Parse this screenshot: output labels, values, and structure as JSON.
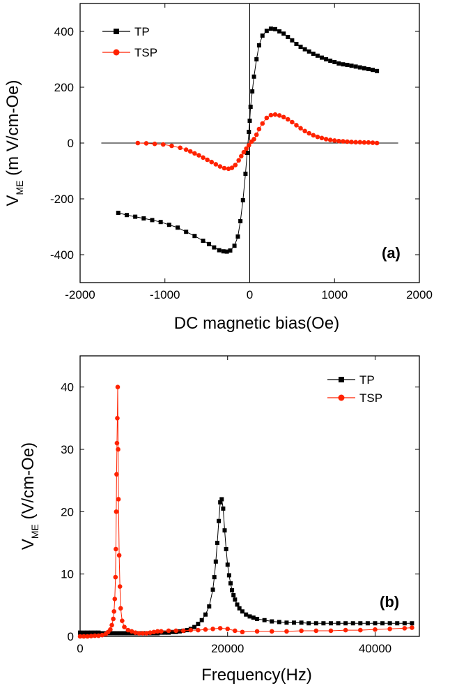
{
  "chart_data": [
    {
      "type": "scatter",
      "panel_label": "(a)",
      "xlabel": "DC magnetic bias(Oe)",
      "ylabel": {
        "base": "V",
        "sub": "ME",
        "rest": " (m V/cm-Oe)"
      },
      "xlim": [
        -2000,
        2000
      ],
      "ylim": [
        -500,
        500
      ],
      "xticks": [
        -2000,
        -1000,
        0,
        1000,
        2000
      ],
      "yticks": [
        -400,
        -200,
        0,
        200,
        400
      ],
      "xtick_labels": [
        "-2000",
        "-1000",
        "0",
        "1000",
        "2000"
      ],
      "ytick_labels": [
        "-400",
        "-200",
        "0",
        "200",
        "400"
      ],
      "reference_lines": {
        "x": 0,
        "y": 0
      },
      "legend_position": "top-left",
      "series": [
        {
          "name": "TP",
          "color": "#000000",
          "marker": "square",
          "x": [
            -1550,
            -1450,
            -1350,
            -1250,
            -1150,
            -1050,
            -950,
            -850,
            -750,
            -650,
            -550,
            -480,
            -420,
            -360,
            -310,
            -270,
            -230,
            -180,
            -140,
            -110,
            -80,
            -50,
            -30,
            -10,
            0,
            10,
            30,
            50,
            80,
            110,
            150,
            200,
            250,
            300,
            350,
            400,
            450,
            500,
            550,
            600,
            650,
            700,
            750,
            800,
            850,
            900,
            950,
            1000,
            1050,
            1100,
            1150,
            1200,
            1250,
            1300,
            1350,
            1400,
            1450,
            1500
          ],
          "y": [
            -250,
            -258,
            -264,
            -270,
            -276,
            -283,
            -293,
            -303,
            -318,
            -333,
            -350,
            -362,
            -374,
            -384,
            -388,
            -389,
            -385,
            -368,
            -335,
            -280,
            -205,
            -110,
            -35,
            40,
            80,
            130,
            185,
            238,
            300,
            350,
            385,
            402,
            410,
            408,
            400,
            392,
            380,
            368,
            355,
            345,
            336,
            328,
            320,
            313,
            306,
            300,
            295,
            290,
            285,
            282,
            280,
            277,
            274,
            271,
            268,
            265,
            262,
            258
          ]
        },
        {
          "name": "TSP",
          "color": "#ff2200",
          "marker": "circle",
          "x": [
            -1320,
            -1220,
            -1120,
            -1020,
            -920,
            -820,
            -750,
            -700,
            -650,
            -600,
            -550,
            -500,
            -450,
            -400,
            -350,
            -300,
            -250,
            -210,
            -170,
            -130,
            -100,
            -70,
            -40,
            -10,
            20,
            50,
            80,
            110,
            150,
            200,
            250,
            300,
            350,
            400,
            450,
            500,
            550,
            600,
            650,
            700,
            750,
            800,
            850,
            900,
            950,
            1000,
            1050,
            1100,
            1150,
            1200,
            1250,
            1300,
            1350,
            1400,
            1450,
            1500
          ],
          "y": [
            0,
            -1,
            -3,
            -5,
            -10,
            -17,
            -24,
            -30,
            -37,
            -44,
            -52,
            -60,
            -68,
            -76,
            -84,
            -90,
            -92,
            -89,
            -79,
            -62,
            -47,
            -33,
            -20,
            -8,
            5,
            14,
            30,
            50,
            70,
            90,
            100,
            102,
            99,
            93,
            85,
            75,
            64,
            53,
            43,
            35,
            28,
            22,
            18,
            14,
            11,
            9,
            7,
            6,
            5,
            4,
            3,
            3,
            2,
            2,
            1,
            0
          ]
        }
      ]
    },
    {
      "type": "scatter",
      "panel_label": "(b)",
      "xlabel": "Frequency(Hz)",
      "ylabel": {
        "base": "V",
        "sub": "ME",
        "rest": " (V/cm-Oe)"
      },
      "xlim": [
        0,
        46000
      ],
      "ylim": [
        0,
        45
      ],
      "xticks": [
        0,
        20000,
        40000
      ],
      "yticks": [
        0,
        10,
        20,
        30,
        40
      ],
      "xtick_labels": [
        "0",
        "20000",
        "40000"
      ],
      "ytick_labels": [
        "0",
        "10",
        "20",
        "30",
        "40"
      ],
      "legend_position": "top-right",
      "series": [
        {
          "name": "TP",
          "color": "#000000",
          "marker": "square",
          "x": [
            0,
            500,
            1000,
            1500,
            2000,
            2500,
            3000,
            3500,
            4000,
            4500,
            5000,
            5500,
            6000,
            6500,
            7000,
            7500,
            8000,
            8500,
            9000,
            9500,
            10000,
            10500,
            11000,
            11500,
            12000,
            12500,
            13000,
            13500,
            14000,
            14500,
            15000,
            15500,
            16000,
            16500,
            17000,
            17500,
            18000,
            18200,
            18400,
            18600,
            18800,
            19000,
            19200,
            19400,
            19600,
            19800,
            20000,
            20200,
            20400,
            20600,
            20800,
            21000,
            21300,
            21600,
            22000,
            22500,
            23000,
            23500,
            24000,
            25000,
            26000,
            27000,
            28000,
            29000,
            30000,
            31000,
            32000,
            33000,
            34000,
            35000,
            36000,
            37000,
            38000,
            39000,
            40000,
            41000,
            42000,
            43000,
            44000,
            45000
          ],
          "y": [
            0.6,
            0.6,
            0.6,
            0.6,
            0.6,
            0.6,
            0.5,
            0.5,
            0.5,
            0.5,
            0.5,
            0.5,
            0.5,
            0.5,
            0.5,
            0.5,
            0.5,
            0.5,
            0.5,
            0.5,
            0.5,
            0.5,
            0.6,
            0.6,
            0.6,
            0.7,
            0.7,
            0.8,
            0.9,
            1.0,
            1.2,
            1.5,
            2.0,
            2.6,
            3.5,
            4.8,
            7.5,
            9.5,
            12,
            15,
            18.5,
            21.5,
            22,
            20.5,
            17,
            14,
            11.5,
            9.8,
            8.5,
            7.4,
            6.6,
            5.9,
            5.1,
            4.5,
            4.0,
            3.5,
            3.2,
            3.0,
            2.8,
            2.6,
            2.4,
            2.3,
            2.2,
            2.2,
            2.2,
            2.1,
            2.1,
            2.1,
            2.1,
            2.1,
            2.1,
            2.1,
            2.1,
            2.1,
            2.1,
            2.1,
            2.1,
            2.1,
            2.1,
            2.1
          ]
        },
        {
          "name": "TSP",
          "color": "#ff2200",
          "marker": "circle",
          "x": [
            0,
            500,
            1000,
            1500,
            2000,
            2500,
            3000,
            3500,
            3800,
            4100,
            4300,
            4500,
            4600,
            4700,
            4800,
            4850,
            4900,
            4950,
            5000,
            5050,
            5100,
            5150,
            5200,
            5300,
            5400,
            5500,
            5700,
            6000,
            6500,
            7000,
            7500,
            8000,
            8500,
            9000,
            9500,
            10000,
            10500,
            11000,
            12000,
            13000,
            14000,
            15000,
            16000,
            17000,
            18000,
            19000,
            20000,
            21000,
            22000,
            24000,
            26000,
            28000,
            30000,
            32000,
            34000,
            36000,
            38000,
            40000,
            42000,
            44000,
            45000
          ],
          "y": [
            0,
            0,
            0,
            0.05,
            0.1,
            0.1,
            0.2,
            0.4,
            0.7,
            1.1,
            1.8,
            2.8,
            4,
            6,
            9.5,
            14,
            20,
            26,
            31,
            35,
            40,
            30,
            22,
            13,
            8,
            4.5,
            2.5,
            1.5,
            1.0,
            0.8,
            0.6,
            0.5,
            0.5,
            0.5,
            0.6,
            0.7,
            0.8,
            0.8,
            0.9,
            0.9,
            0.9,
            1.0,
            1.0,
            1.1,
            1.2,
            1.3,
            1.2,
            0.9,
            0.7,
            0.8,
            0.8,
            0.8,
            0.9,
            0.9,
            0.9,
            1.0,
            1.0,
            1.1,
            1.2,
            1.3,
            1.4
          ]
        }
      ]
    }
  ]
}
